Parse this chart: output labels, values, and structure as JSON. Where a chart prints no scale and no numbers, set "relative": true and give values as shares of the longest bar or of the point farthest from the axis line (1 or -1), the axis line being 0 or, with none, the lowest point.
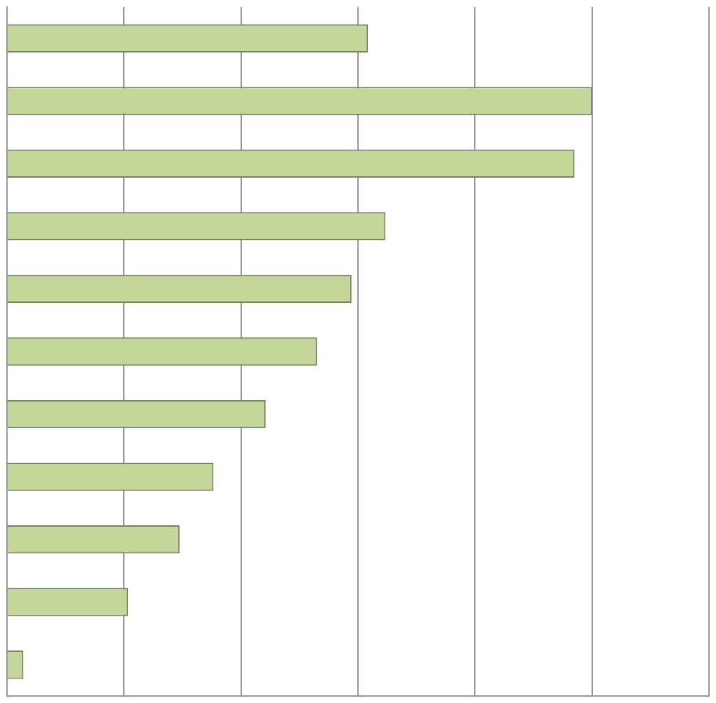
{
  "chart_data": {
    "type": "bar",
    "orientation": "horizontal",
    "relative": true,
    "grid": "x",
    "legend": false,
    "categories": [
      null,
      null,
      null,
      null,
      null,
      null,
      null,
      null,
      null,
      null,
      null
    ],
    "series": [
      {
        "color": "#c4d79b",
        "values": [
          0.617,
          1,
          0.97,
          0.647,
          0.589,
          0.53,
          0.442,
          0.353,
          0.295,
          0.207,
          0.028
        ]
      }
    ]
  }
}
